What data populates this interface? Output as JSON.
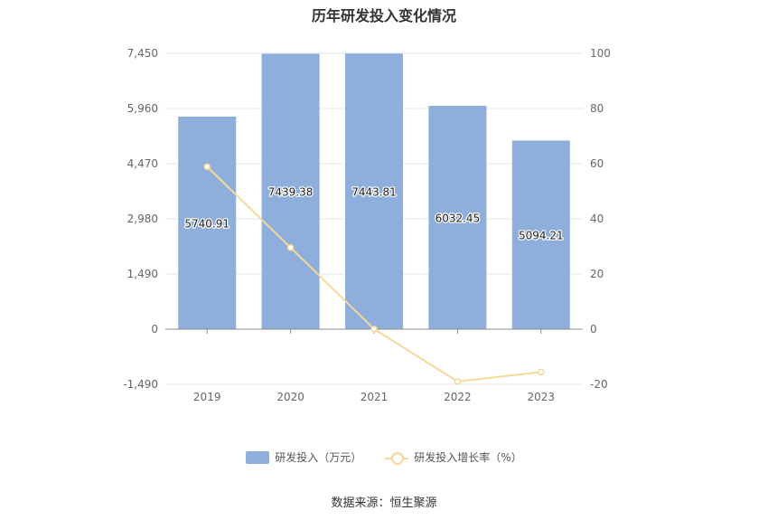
{
  "chart_data": {
    "type": "bar",
    "title": "历年研发投入变化情况",
    "categories": [
      "2019",
      "2020",
      "2021",
      "2022",
      "2023"
    ],
    "series": [
      {
        "name": "研发投入（万元）",
        "type": "bar",
        "axis": "left",
        "values": [
          5740.91,
          7439.38,
          7443.81,
          6032.45,
          5094.21
        ],
        "labels": [
          "5740.91",
          "7439.38",
          "7443.81",
          "6032.45",
          "5094.21"
        ],
        "color": "#8eaedb"
      },
      {
        "name": "研发投入增长率（%）",
        "type": "line",
        "axis": "right",
        "values": [
          58.9,
          29.6,
          0.06,
          -18.96,
          -15.55
        ],
        "color": "#f7d79a"
      }
    ],
    "y_left": {
      "ticks": [
        -1490,
        0,
        1490,
        2980,
        4470,
        5960,
        7450
      ],
      "tick_labels": [
        "-1,490",
        "0",
        "1,490",
        "2,980",
        "4,470",
        "5,960",
        "7,450"
      ],
      "ylim": [
        -1490,
        7450
      ]
    },
    "y_right": {
      "ticks": [
        -20,
        0,
        20,
        40,
        60,
        80,
        100
      ],
      "tick_labels": [
        "-20",
        "0",
        "20",
        "40",
        "60",
        "80",
        "100"
      ],
      "ylim": [
        -20,
        100
      ]
    },
    "grid": true,
    "legend_position": "bottom"
  },
  "source": "数据来源：恒生聚源"
}
